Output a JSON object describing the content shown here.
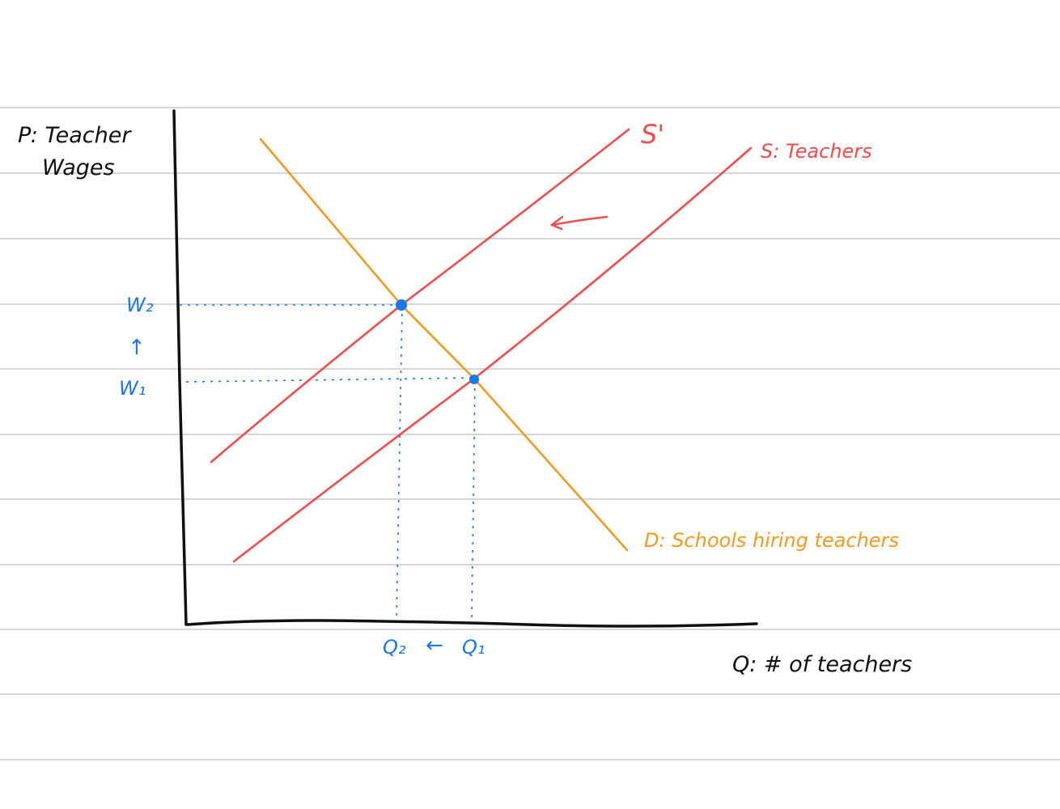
{
  "axes": {
    "y_label_line1": "P: Teacher",
    "y_label_line2": "Wages",
    "x_label": "Q: # of teachers"
  },
  "curves": {
    "supply_original_label": "S: Teachers",
    "supply_shifted_label": "S'",
    "demand_label": "D: Schools hiring teachers"
  },
  "markers": {
    "wage_high": "W₂",
    "wage_low": "W₁",
    "wage_arrow": "↑",
    "qty_low": "Q₂",
    "qty_high": "Q₁",
    "qty_arrow": "←",
    "shift_arrow": "←"
  },
  "colors": {
    "axis": "#111111",
    "supply": "#ee4d4d",
    "demand": "#f29a21",
    "equilibrium": "#1a78e6",
    "ruled_lines": "#d6d6d6"
  }
}
